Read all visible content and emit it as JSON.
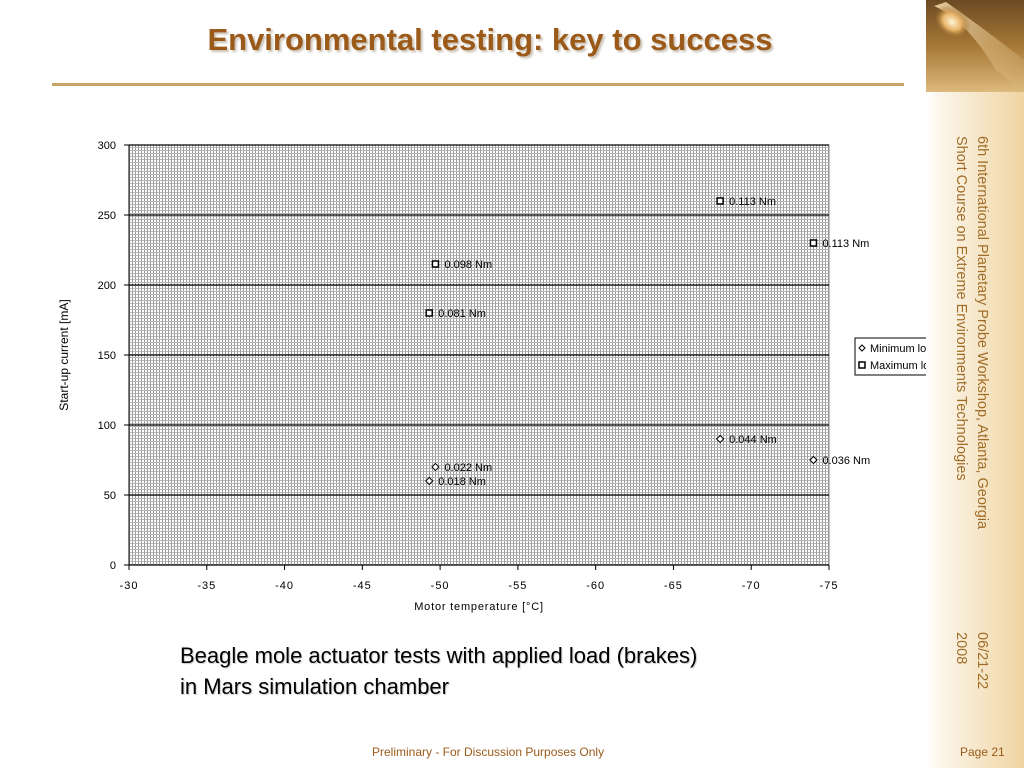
{
  "slide": {
    "title": "Environmental testing: key to success",
    "caption_lines": [
      "Beagle mole actuator tests with applied load (brakes)",
      "in Mars simulation chamber"
    ],
    "workshop": "6th International Planetary Probe Workshop, Atlanta, Georgia\nShort Course on Extreme Environments Technologies",
    "date": "06/21-22\n2008",
    "footer": "Preliminary - For Discussion Purposes Only",
    "page": "Page 21"
  },
  "colors": {
    "title": "#9b5a1a",
    "accent": "#c8a463",
    "footer": "#9b5a1a"
  },
  "chart_data": {
    "type": "scatter",
    "title": "",
    "xlabel": "Motor temperature [°C]",
    "ylabel": "Start-up current [mA]",
    "xlim": [
      -30,
      -75
    ],
    "ylim": [
      0,
      300
    ],
    "xticks": [
      -30,
      -35,
      -40,
      -45,
      -50,
      -55,
      -60,
      -65,
      -70,
      -75
    ],
    "yticks": [
      0,
      50,
      100,
      150,
      200,
      250,
      300
    ],
    "grid": true,
    "legend_position": "right",
    "series": [
      {
        "name": "Minimum load",
        "marker": "diamond",
        "points": [
          {
            "x": -49.7,
            "y": 70,
            "label": "0.022 Nm"
          },
          {
            "x": -49.3,
            "y": 60,
            "label": "0.018 Nm"
          },
          {
            "x": -68.0,
            "y": 90,
            "label": "0.044 Nm"
          },
          {
            "x": -74.0,
            "y": 75,
            "label": "0.036 Nm"
          }
        ]
      },
      {
        "name": "Maximum load",
        "marker": "square",
        "points": [
          {
            "x": -68.0,
            "y": 260,
            "label": "0.113 Nm"
          },
          {
            "x": -74.0,
            "y": 230,
            "label": "0.113 Nm"
          },
          {
            "x": -49.7,
            "y": 215,
            "label": "0.098 Nm"
          },
          {
            "x": -49.3,
            "y": 180,
            "label": "0.081 Nm"
          }
        ]
      }
    ]
  }
}
